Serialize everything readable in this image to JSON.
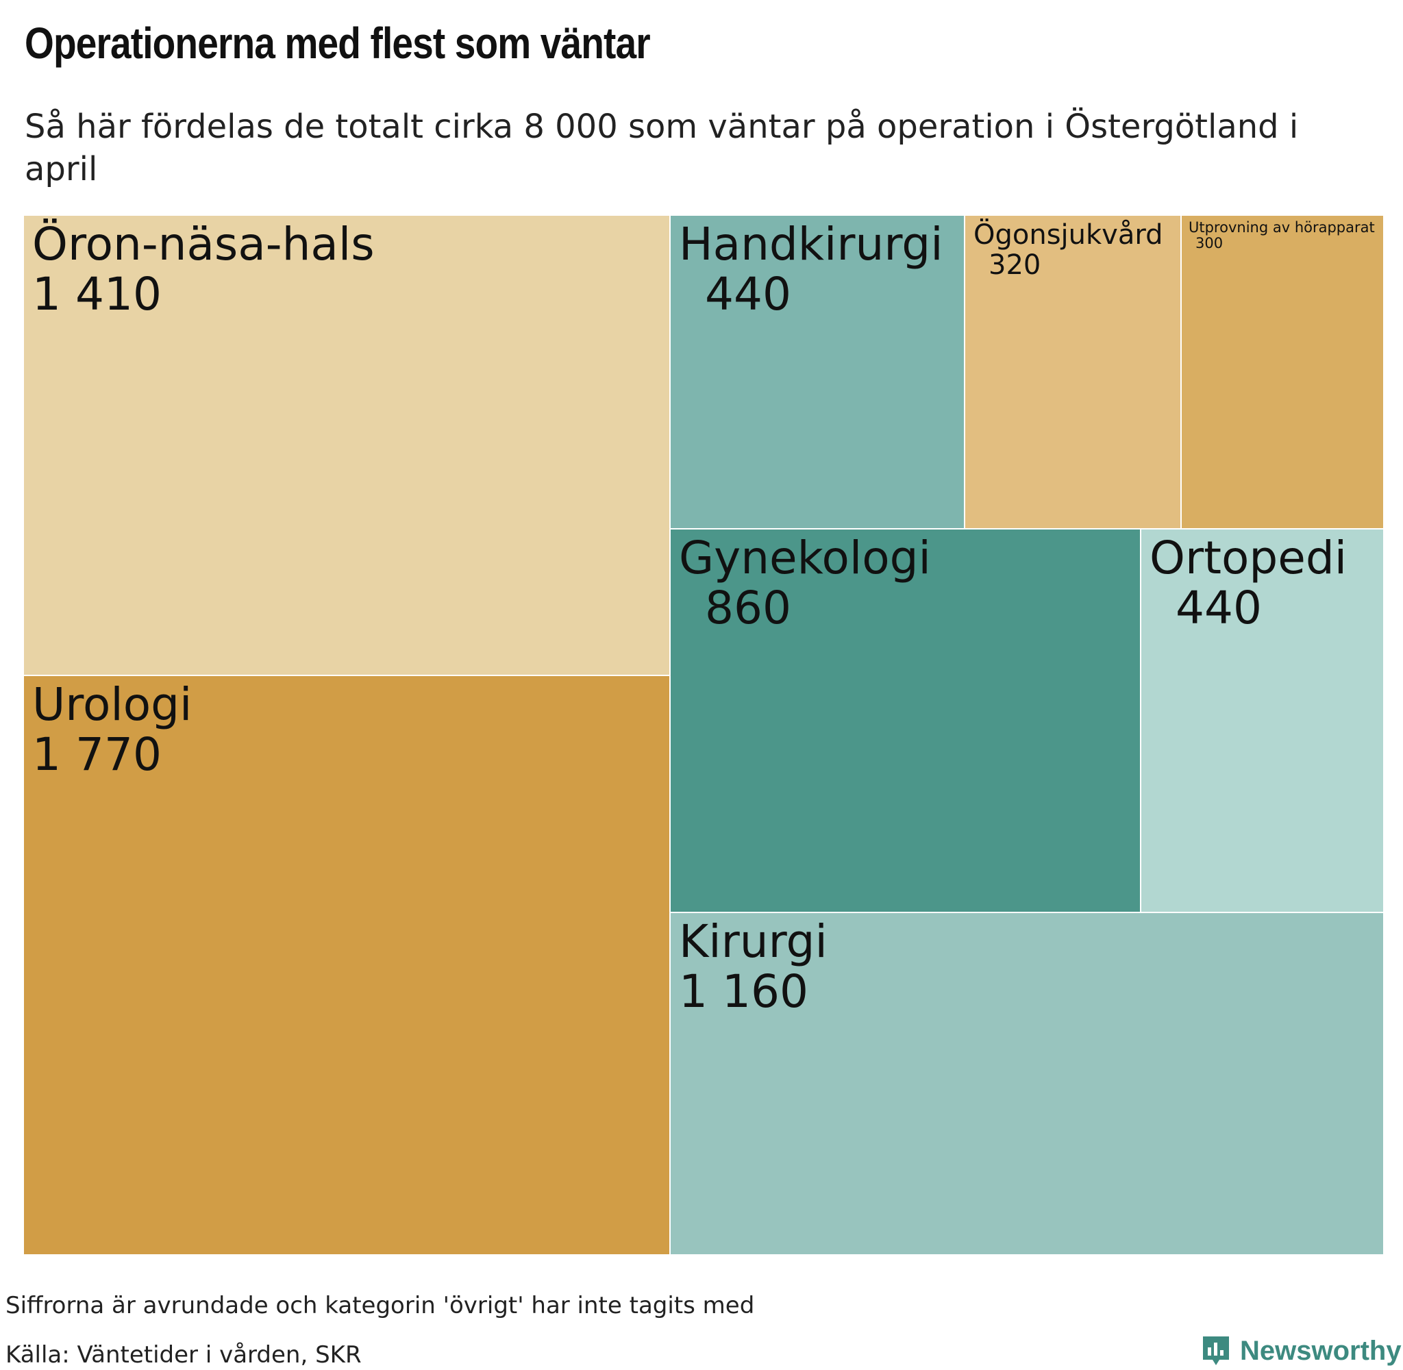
{
  "header": {
    "title": "Operationerna med flest som väntar",
    "subtitle": "Så här fördelas de totalt cirka 8 000 som väntar på operation i Östergötland i april"
  },
  "chart_data": {
    "type": "treemap",
    "title": "Operationerna med flest som väntar",
    "subtitle": "Så här fördelas de totalt cirka 8 000 som väntar på operation i Östergötland i april",
    "items": [
      {
        "name": "Urologi",
        "value": 1770,
        "value_label": "1 770",
        "color": "#d19d46"
      },
      {
        "name": "Öron-näsa-hals",
        "value": 1410,
        "value_label": "1 410",
        "color": "#e8d3a5"
      },
      {
        "name": "Kirurgi",
        "value": 1160,
        "value_label": "1 160",
        "color": "#98c4be"
      },
      {
        "name": "Gynekologi",
        "value": 860,
        "value_label": "860",
        "color": "#4c968a"
      },
      {
        "name": "Ortopedi",
        "value": 440,
        "value_label": "440",
        "color": "#b2d7d1"
      },
      {
        "name": "Handkirurgi",
        "value": 440,
        "value_label": "440",
        "color": "#7eb5ae"
      },
      {
        "name": "Ögonsjukvård",
        "value": 320,
        "value_label": "320",
        "color": "#e2be80"
      },
      {
        "name": "Utprovning av hörapparat",
        "value": 300,
        "value_label": "300",
        "color": "#d9ae62"
      }
    ]
  },
  "footer": {
    "note": "Siffrorna är avrundade och kategorin 'övrigt' har inte tagits med",
    "source": "Källa: Väntetider i vården, SKR",
    "brand": "Newsworthy"
  },
  "brand_icon": "newsworthy-logo-icon"
}
